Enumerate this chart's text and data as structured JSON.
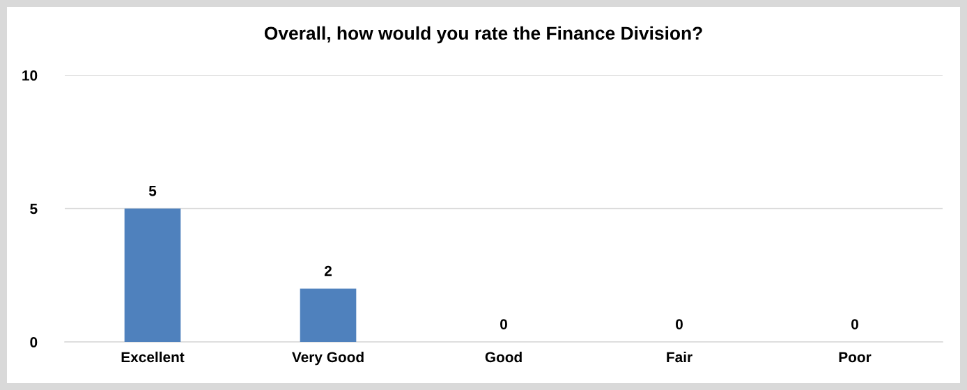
{
  "chart_data": {
    "type": "bar",
    "title": "Overall, how would you rate the Finance Division?",
    "categories": [
      "Excellent",
      "Very Good",
      "Good",
      "Fair",
      "Poor"
    ],
    "values": [
      5,
      2,
      0,
      0,
      0
    ],
    "color": "#4f81bd",
    "ylim": [
      0,
      10
    ],
    "yticks": [
      0,
      5,
      10
    ],
    "grid": "y",
    "data_labels": true
  }
}
